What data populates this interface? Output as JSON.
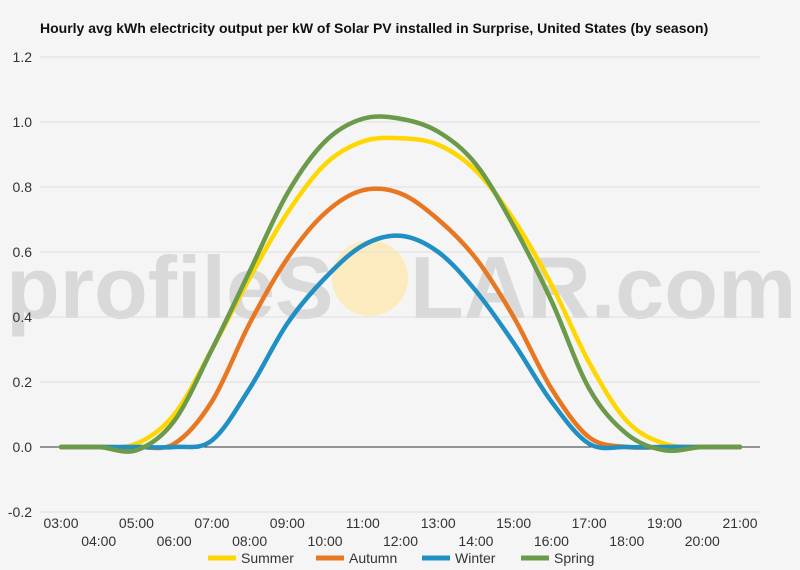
{
  "chart_data": {
    "type": "line",
    "title": "Hourly avg kWh electricity output per kW of Solar PV installed in Surprise, United States (by season)",
    "xlabel": "",
    "ylabel": "",
    "ylim": [
      -0.2,
      1.2
    ],
    "yticks": [
      "-0.2",
      "0.0",
      "0.2",
      "0.4",
      "0.6",
      "0.8",
      "1.0",
      "1.2"
    ],
    "x": [
      "03:00",
      "04:00",
      "05:00",
      "06:00",
      "07:00",
      "08:00",
      "09:00",
      "10:00",
      "11:00",
      "12:00",
      "13:00",
      "14:00",
      "15:00",
      "16:00",
      "17:00",
      "18:00",
      "19:00",
      "20:00",
      "21:00"
    ],
    "grid": true,
    "legend_position": "bottom",
    "watermark_left": "profileS",
    "watermark_right": "LAR.com",
    "series": [
      {
        "name": "Summer",
        "color": "#FFD700",
        "values": [
          0,
          0,
          0.01,
          0.1,
          0.3,
          0.52,
          0.72,
          0.87,
          0.94,
          0.95,
          0.93,
          0.85,
          0.7,
          0.5,
          0.26,
          0.08,
          0.01,
          0,
          0
        ]
      },
      {
        "name": "Autumn",
        "color": "#E87722",
        "values": [
          0,
          0,
          0,
          0.01,
          0.14,
          0.38,
          0.58,
          0.72,
          0.79,
          0.78,
          0.7,
          0.58,
          0.4,
          0.18,
          0.03,
          0,
          0,
          0,
          0
        ]
      },
      {
        "name": "Winter",
        "color": "#1F8FC4",
        "values": [
          0,
          0,
          0,
          0,
          0.02,
          0.18,
          0.38,
          0.52,
          0.62,
          0.65,
          0.6,
          0.48,
          0.32,
          0.14,
          0.01,
          0,
          0,
          0,
          0
        ]
      },
      {
        "name": "Spring",
        "color": "#6B9A4B",
        "values": [
          0,
          0,
          -0.01,
          0.08,
          0.3,
          0.54,
          0.78,
          0.94,
          1.01,
          1.01,
          0.97,
          0.87,
          0.68,
          0.45,
          0.18,
          0.04,
          -0.01,
          0,
          0
        ]
      }
    ]
  }
}
